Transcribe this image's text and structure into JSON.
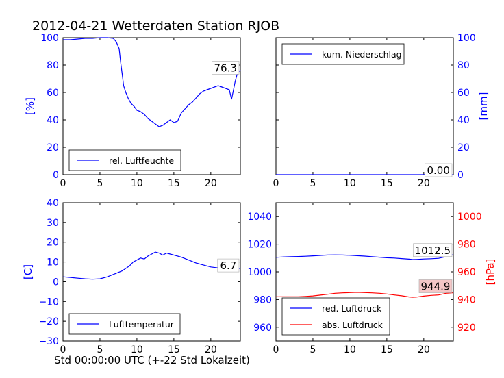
{
  "figure": {
    "title": "2012-04-21 Wetterdaten Station RJOB",
    "xlabel": "Std 00:00:00 UTC (+-22 Std Lokalzeit)"
  },
  "colors": {
    "blue": "#0000ff",
    "red": "#ff0000",
    "axis": "#000000",
    "valuebox_red_fill": "#f4c7c7"
  },
  "chart_data": [
    {
      "id": "humidity",
      "type": "line",
      "xlim": [
        0,
        24
      ],
      "ylim": [
        0,
        100
      ],
      "xticks": [
        "0",
        "5",
        "10",
        "15",
        "20"
      ],
      "yticks_left": [
        "0",
        "20",
        "40",
        "60",
        "80",
        "100"
      ],
      "ylabel_left": "[%]",
      "grid": false,
      "legend_position": "lower-left",
      "last_value_label": "76.3",
      "series": [
        {
          "name": "rel. Luftfeuchte",
          "color": "#0000ff",
          "x": [
            0,
            1,
            2,
            3,
            4,
            5,
            6,
            6.8,
            7.2,
            7.6,
            7.8,
            8.0,
            8.2,
            8.5,
            8.8,
            9.2,
            9.6,
            10,
            10.5,
            11,
            11.5,
            12,
            12.5,
            13,
            13.5,
            14,
            14.5,
            15,
            15.5,
            16,
            16.5,
            17,
            17.5,
            18,
            18.5,
            19,
            19.5,
            20,
            20.5,
            21,
            21.5,
            22,
            22.5,
            22.8,
            23,
            23.3,
            23.6,
            24
          ],
          "y": [
            98.5,
            98.5,
            99,
            99.5,
            99.5,
            100,
            100,
            99.5,
            97,
            92,
            82,
            74,
            65,
            60,
            56,
            52,
            50,
            47,
            46,
            44,
            41,
            39,
            37,
            35,
            36,
            38,
            40,
            38,
            39,
            45,
            48,
            51,
            53,
            56,
            59,
            61,
            62,
            63,
            64,
            65,
            64,
            63,
            62,
            55,
            60,
            68,
            74,
            76.3
          ]
        }
      ]
    },
    {
      "id": "precipitation",
      "type": "line",
      "xlim": [
        0,
        24
      ],
      "ylim": [
        0,
        100
      ],
      "xticks": [
        "0",
        "5",
        "10",
        "15",
        "20"
      ],
      "yticks_right": [
        "0",
        "20",
        "40",
        "60",
        "80",
        "100"
      ],
      "ylabel_right": "[mm]",
      "grid": false,
      "legend_position": "upper-left",
      "last_value_label": "0.00",
      "series": [
        {
          "name": "kum. Niederschlag",
          "color": "#0000ff",
          "x": [
            0,
            24
          ],
          "y": [
            0,
            0
          ]
        }
      ]
    },
    {
      "id": "temperature",
      "type": "line",
      "xlim": [
        0,
        24
      ],
      "ylim": [
        -30,
        40
      ],
      "xticks": [
        "0",
        "5",
        "10",
        "15",
        "20"
      ],
      "yticks_left": [
        "−30",
        "−20",
        "−10",
        "0",
        "10",
        "20",
        "30",
        "40"
      ],
      "ylabel_left": "[C]",
      "grid": false,
      "legend_position": "lower-left",
      "last_value_label": "6.7",
      "series": [
        {
          "name": "Lufttemperatur",
          "color": "#0000ff",
          "x": [
            0,
            1,
            2,
            3,
            4,
            5,
            6,
            7,
            8,
            9,
            9.5,
            10,
            10.5,
            11,
            11.5,
            12,
            12.5,
            13,
            13.5,
            14,
            14.5,
            15,
            16,
            17,
            18,
            19,
            20,
            21,
            22,
            23,
            24
          ],
          "y": [
            2.5,
            2.2,
            1.8,
            1.5,
            1.3,
            1.5,
            2.5,
            4,
            5.5,
            8,
            10,
            11,
            12,
            11.5,
            13,
            14,
            15,
            14.5,
            13.5,
            14.5,
            14,
            13.5,
            12.5,
            11,
            9.5,
            8.5,
            7.5,
            7,
            7.5,
            7,
            6.7
          ]
        }
      ]
    },
    {
      "id": "pressure",
      "type": "line",
      "xlim": [
        0,
        24
      ],
      "ylim_left": [
        950,
        1050
      ],
      "ylim_right": [
        910,
        1010
      ],
      "xticks": [
        "0",
        "5",
        "10",
        "15",
        "20"
      ],
      "yticks_left": [
        "960",
        "980",
        "1000",
        "1020",
        "1040"
      ],
      "yticks_right": [
        "920",
        "940",
        "960",
        "980",
        "1000"
      ],
      "ylabel_right": "[hPa]",
      "grid": false,
      "legend_position": "lower-left",
      "last_value_label_left": "1012.5",
      "last_value_label_right": "944.9",
      "series": [
        {
          "name": "red. Luftdruck",
          "color": "#0000ff",
          "axis": "left",
          "x": [
            0,
            1,
            2,
            3,
            4,
            5,
            6,
            7,
            8,
            9,
            10,
            11,
            12,
            13,
            14,
            15,
            16,
            17,
            18,
            18.5,
            19,
            20,
            21,
            22,
            23,
            24
          ],
          "y": [
            1010.5,
            1010.8,
            1011,
            1011.1,
            1011.3,
            1011.6,
            1011.9,
            1012.2,
            1012.3,
            1012.2,
            1012,
            1011.7,
            1011.4,
            1011,
            1010.6,
            1010.2,
            1010,
            1009.6,
            1009.2,
            1008.9,
            1009,
            1009.3,
            1009.5,
            1009.8,
            1011,
            1012.5
          ]
        },
        {
          "name": "abs. Luftdruck",
          "color": "#ff0000",
          "axis": "right",
          "x": [
            0,
            1,
            2,
            3,
            4,
            5,
            6,
            7,
            8,
            9,
            10,
            11,
            12,
            13,
            14,
            15,
            16,
            17,
            18,
            18.5,
            19,
            20,
            21,
            22,
            23,
            24
          ],
          "y": [
            942,
            942,
            942,
            942,
            942.3,
            942.6,
            943.2,
            943.8,
            944.5,
            944.8,
            945,
            945.2,
            945,
            944.8,
            944.5,
            944,
            943.3,
            942.7,
            941.9,
            941.7,
            941.8,
            942.5,
            943,
            943.3,
            944.5,
            944.9
          ]
        }
      ]
    }
  ]
}
